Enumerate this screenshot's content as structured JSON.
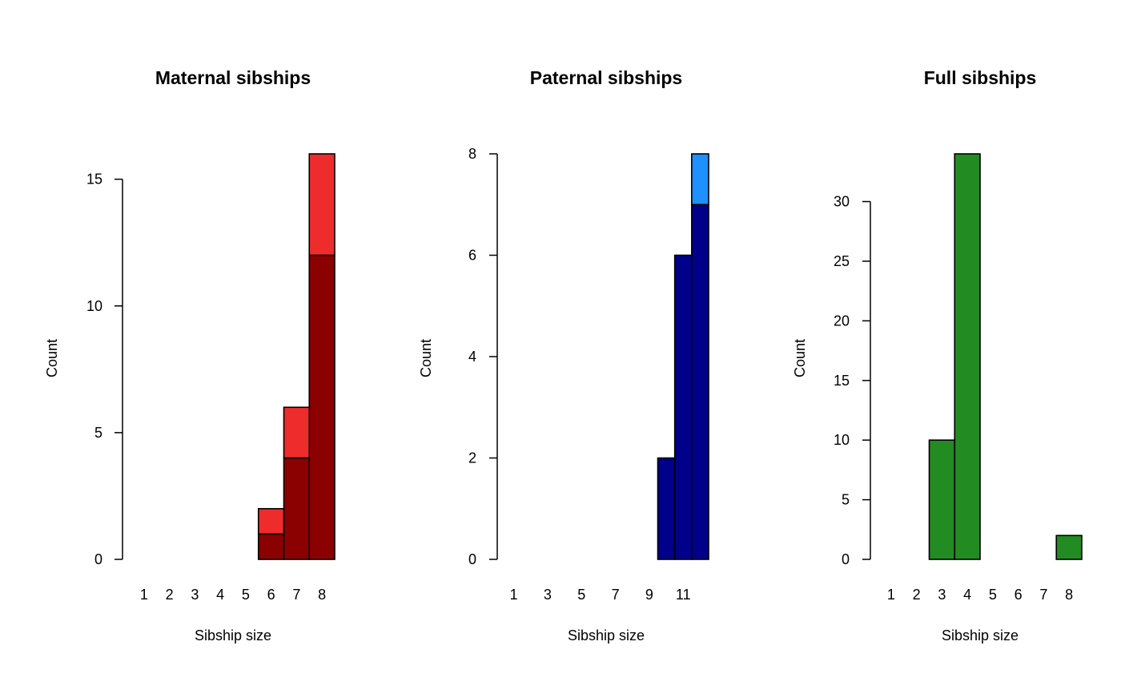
{
  "chart_data": [
    {
      "type": "bar",
      "title": "Maternal sibships",
      "xlabel": "Sibship size",
      "ylabel": "Count",
      "categories": [
        "1",
        "2",
        "3",
        "4",
        "5",
        "6",
        "7",
        "8"
      ],
      "x_tick_labels": [
        "1",
        "2",
        "3",
        "4",
        "5",
        "6",
        "7",
        "8"
      ],
      "y_ticks": [
        0,
        5,
        10,
        15
      ],
      "ylim": [
        0,
        16
      ],
      "series": [
        {
          "values": [
            0,
            0,
            0,
            0,
            0,
            1,
            4,
            12
          ],
          "color": "#8B0000"
        },
        {
          "values": [
            0,
            0,
            0,
            0,
            0,
            1,
            2,
            4
          ],
          "color": "#EE2C2C"
        }
      ]
    },
    {
      "type": "bar",
      "title": "Paternal sibships",
      "xlabel": "Sibship size",
      "ylabel": "Count",
      "categories": [
        "1",
        "2",
        "3",
        "4",
        "5",
        "6",
        "7",
        "8",
        "9",
        "10",
        "11",
        "12"
      ],
      "x_tick_labels": [
        "1",
        "3",
        "5",
        "7",
        "9",
        "11"
      ],
      "y_ticks": [
        0,
        2,
        4,
        6,
        8
      ],
      "ylim": [
        0,
        8
      ],
      "series": [
        {
          "values": [
            0,
            0,
            0,
            0,
            0,
            0,
            0,
            0,
            0,
            2,
            6,
            7
          ],
          "color": "#00008B"
        },
        {
          "values": [
            0,
            0,
            0,
            0,
            0,
            0,
            0,
            0,
            0,
            0,
            0,
            1
          ],
          "color": "#1E90FF"
        }
      ]
    },
    {
      "type": "bar",
      "title": "Full sibships",
      "xlabel": "Sibship size",
      "ylabel": "Count",
      "categories": [
        "1",
        "2",
        "3",
        "4",
        "5",
        "6",
        "7",
        "8"
      ],
      "x_tick_labels": [
        "1",
        "2",
        "3",
        "4",
        "5",
        "6",
        "7",
        "8"
      ],
      "y_ticks": [
        0,
        5,
        10,
        15,
        20,
        25,
        30
      ],
      "ylim": [
        0,
        34
      ],
      "series": [
        {
          "values": [
            0,
            0,
            10,
            34,
            0,
            0,
            0,
            2
          ],
          "color": "#228B22"
        }
      ]
    }
  ]
}
